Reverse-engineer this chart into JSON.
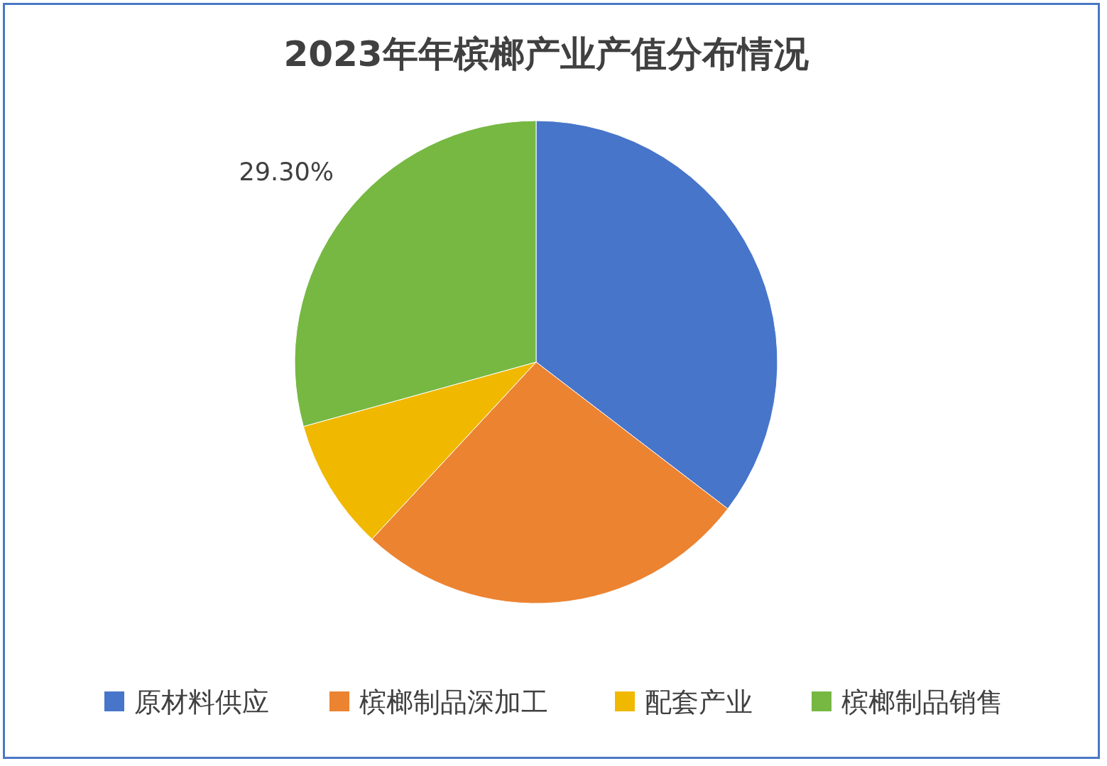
{
  "chart_data": {
    "type": "pie",
    "title": "2023年年槟榔产业产值分布情况",
    "categories": [
      "原材料供应",
      "槟榔制品深加工",
      "配套产业",
      "槟榔制品销售"
    ],
    "values": [
      35.4,
      26.5,
      8.8,
      29.3
    ],
    "colors": [
      "#4775ca",
      "#ec8331",
      "#f1b800",
      "#76b842"
    ],
    "value_labels": [
      null,
      null,
      null,
      "29.30%"
    ],
    "legend": "bottom"
  }
}
